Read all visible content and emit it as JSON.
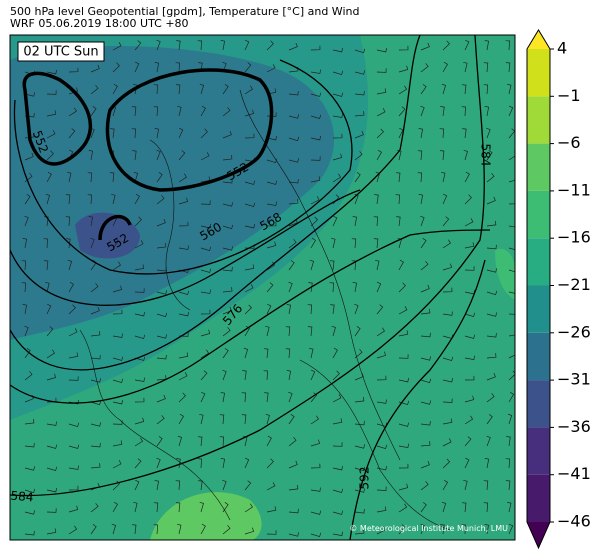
{
  "header": {
    "title": "500 hPa level Geopotential [gpdm], Temperature [°C] and Wind",
    "subtitle": "WRF 05.06.2019 18:00 UTC +80"
  },
  "map": {
    "time_label": "02 UTC Sun",
    "contour_labels": [
      552,
      552,
      552,
      560,
      568,
      576,
      584,
      584,
      592
    ],
    "credit": "© Meteorological Institute Munich, LMU"
  },
  "colorbar": {
    "lim": [
      -46,
      4
    ],
    "ticks": [
      {
        "value": -46,
        "label": "−46"
      },
      {
        "value": -41,
        "label": "−41"
      },
      {
        "value": -36,
        "label": "−36"
      },
      {
        "value": -31,
        "label": "−31"
      },
      {
        "value": -26,
        "label": "−26"
      },
      {
        "value": -21,
        "label": "−21"
      },
      {
        "value": -16,
        "label": "−16"
      },
      {
        "value": -11,
        "label": "−11"
      },
      {
        "value": -6,
        "label": "−6"
      },
      {
        "value": -1,
        "label": "−1"
      },
      4
    ],
    "colors": [
      "#481a6c",
      "#472f7d",
      "#3b528b",
      "#2c718e",
      "#21908d",
      "#27ad81",
      "#3dbc74",
      "#5ec962",
      "#a0da39",
      "#d0e11c"
    ],
    "under_color": "#440154",
    "over_color": "#fde725"
  }
}
